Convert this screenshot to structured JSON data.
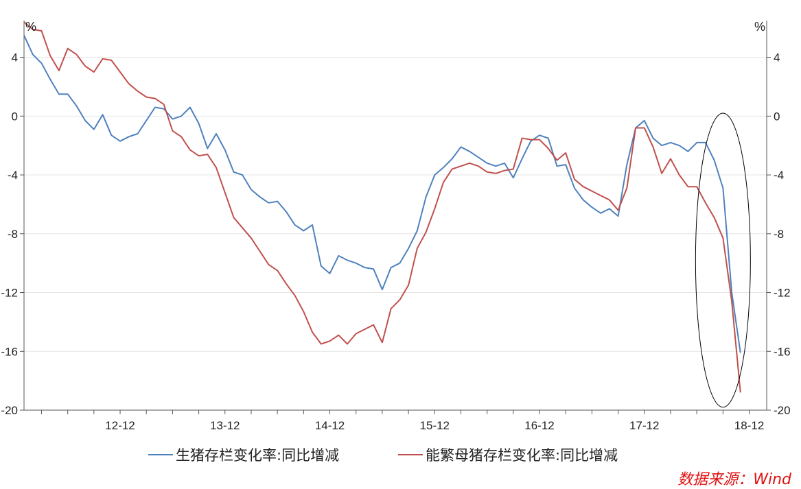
{
  "chart_data": {
    "type": "line",
    "left_axis_unit": "%",
    "right_axis_unit": "%",
    "y_ticks": [
      4,
      0,
      -4,
      -8,
      -12,
      -16,
      -20
    ],
    "ylim": [
      -20,
      6.5
    ],
    "x_tick_labels": [
      "12-12",
      "13-12",
      "14-12",
      "15-12",
      "16-12",
      "17-12",
      "18-12"
    ],
    "x_tick_index": [
      11,
      23,
      35,
      47,
      59,
      71,
      83
    ],
    "x_count": 86,
    "grid": "horizontal",
    "legend_placement": "bottom",
    "series": [
      {
        "name": "生猪存栏变化率:同比增减",
        "color": "#4f81bd",
        "values": [
          5.5,
          4.2,
          3.6,
          2.5,
          1.5,
          1.5,
          0.7,
          -0.3,
          -0.9,
          0.1,
          -1.3,
          -1.7,
          -1.4,
          -1.2,
          -0.3,
          0.6,
          0.5,
          -0.2,
          0.0,
          0.6,
          -0.5,
          -2.2,
          -1.2,
          -2.3,
          -3.8,
          -4.0,
          -5.0,
          -5.5,
          -5.9,
          -5.8,
          -6.5,
          -7.4,
          -7.8,
          -7.4,
          -10.2,
          -10.7,
          -9.5,
          -9.8,
          -10.0,
          -10.3,
          -10.4,
          -11.8,
          -10.3,
          -10.0,
          -9.0,
          -7.8,
          -5.5,
          -4.0,
          -3.5,
          -2.9,
          -2.1,
          -2.4,
          -2.8,
          -3.2,
          -3.4,
          -3.2,
          -4.2,
          -2.9,
          -1.7,
          -1.3,
          -1.5,
          -3.4,
          -3.3,
          -4.9,
          -5.7,
          -6.2,
          -6.6,
          -6.3,
          -6.8,
          -3.3,
          -0.8,
          -0.3,
          -1.5,
          -2.0,
          -1.8,
          -2.0,
          -2.4,
          -1.8,
          -1.8,
          -3.0,
          -4.9,
          -12.0,
          -16.1,
          null,
          null,
          null
        ]
      },
      {
        "name": "能繁母猪存栏变化率:同比增减",
        "color": "#c0504d",
        "values": [
          6.4,
          5.9,
          5.8,
          4.1,
          3.1,
          4.6,
          4.2,
          3.4,
          3.0,
          3.9,
          3.8,
          3.0,
          2.2,
          1.7,
          1.3,
          1.2,
          0.8,
          -1.0,
          -1.4,
          -2.3,
          -2.7,
          -2.6,
          -3.5,
          -5.2,
          -6.9,
          -7.6,
          -8.3,
          -9.2,
          -10.1,
          -10.5,
          -11.4,
          -12.2,
          -13.3,
          -14.7,
          -15.5,
          -15.3,
          -14.9,
          -15.5,
          -14.8,
          -14.5,
          -14.2,
          -15.4,
          -13.1,
          -12.5,
          -11.5,
          -9.0,
          -7.9,
          -6.3,
          -4.5,
          -3.6,
          -3.4,
          -3.2,
          -3.4,
          -3.8,
          -3.9,
          -3.7,
          -3.6,
          -1.5,
          -1.6,
          -1.6,
          -2.2,
          -3.0,
          -2.5,
          -4.3,
          -4.8,
          -5.1,
          -5.4,
          -5.7,
          -6.4,
          -4.9,
          -0.8,
          -0.8,
          -2.1,
          -3.9,
          -2.9,
          -4.0,
          -4.8,
          -4.8,
          -5.9,
          -6.9,
          -8.3,
          -12.6,
          -18.8,
          null,
          null,
          null
        ]
      }
    ],
    "annotation": "ellipse around 18-12 drop"
  },
  "source_label": "数据来源：Wind"
}
